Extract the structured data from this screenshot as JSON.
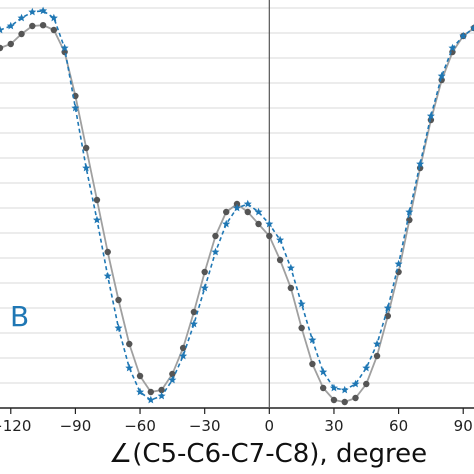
{
  "chart_data": {
    "type": "line",
    "panel_label": "B",
    "xlabel": "∠(C5-C6-C7-C8), degree",
    "ylabel": "",
    "xlim": [
      -125,
      95
    ],
    "ylim": [
      0,
      1.0
    ],
    "x_ticks": [
      -120,
      -90,
      -60,
      -30,
      0,
      30,
      60,
      90
    ],
    "x_tick_labels": [
      "−120",
      "−90",
      "−60",
      "−30",
      "0",
      "30",
      "60",
      "90"
    ],
    "grid": "horizontal",
    "vertical_reference_line_x": 0,
    "series": [
      {
        "style": "solid gray line with dark dot markers",
        "color": "#555555",
        "line_color": "#a0a0a0",
        "x": [
          -125,
          -120,
          -115,
          -110,
          -105,
          -100,
          -95,
          -90,
          -85,
          -80,
          -75,
          -70,
          -65,
          -60,
          -55,
          -50,
          -45,
          -40,
          -35,
          -30,
          -25,
          -20,
          -15,
          -10,
          -5,
          0,
          5,
          10,
          15,
          20,
          25,
          30,
          35,
          40,
          45,
          50,
          55,
          60,
          65,
          70,
          75,
          80,
          85,
          90,
          95
        ],
        "values": [
          0.9,
          0.91,
          0.935,
          0.955,
          0.957,
          0.945,
          0.89,
          0.78,
          0.65,
          0.52,
          0.39,
          0.27,
          0.16,
          0.08,
          0.04,
          0.045,
          0.085,
          0.15,
          0.24,
          0.34,
          0.43,
          0.49,
          0.51,
          0.49,
          0.46,
          0.43,
          0.37,
          0.3,
          0.2,
          0.11,
          0.05,
          0.02,
          0.015,
          0.025,
          0.06,
          0.13,
          0.23,
          0.34,
          0.47,
          0.6,
          0.72,
          0.82,
          0.89,
          0.93,
          0.95
        ]
      },
      {
        "style": "dashed blue line with star markers",
        "color": "#1f77b4",
        "x": [
          -125,
          -120,
          -115,
          -110,
          -105,
          -100,
          -95,
          -90,
          -85,
          -80,
          -75,
          -70,
          -65,
          -60,
          -55,
          -50,
          -45,
          -40,
          -35,
          -30,
          -25,
          -20,
          -15,
          -10,
          -5,
          0,
          5,
          10,
          15,
          20,
          25,
          30,
          35,
          40,
          45,
          50,
          55,
          60,
          65,
          70,
          75,
          80,
          85,
          90,
          95
        ],
        "values": [
          0.945,
          0.955,
          0.975,
          0.99,
          0.993,
          0.975,
          0.9,
          0.75,
          0.6,
          0.47,
          0.33,
          0.2,
          0.1,
          0.04,
          0.02,
          0.03,
          0.07,
          0.13,
          0.21,
          0.3,
          0.39,
          0.46,
          0.5,
          0.51,
          0.49,
          0.46,
          0.42,
          0.35,
          0.26,
          0.17,
          0.09,
          0.05,
          0.045,
          0.06,
          0.1,
          0.16,
          0.25,
          0.36,
          0.49,
          0.61,
          0.73,
          0.83,
          0.9,
          0.93,
          0.95
        ]
      }
    ]
  }
}
